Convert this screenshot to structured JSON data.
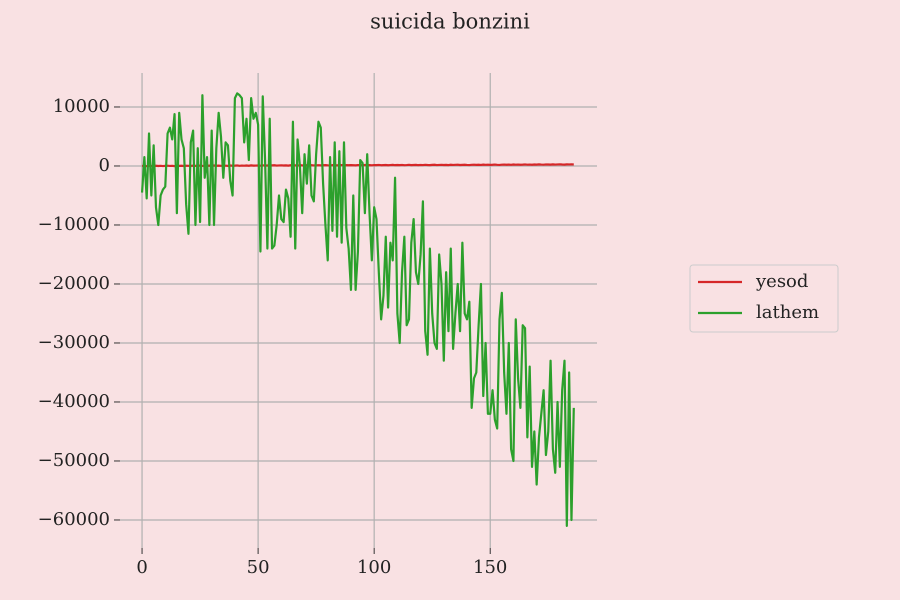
{
  "chart_data": {
    "type": "line",
    "title": "suicida bonzini",
    "x": [
      0,
      1,
      2,
      3,
      4,
      5,
      6,
      7,
      8,
      9,
      10,
      11,
      12,
      13,
      14,
      15,
      16,
      17,
      18,
      19,
      20,
      21,
      22,
      23,
      24,
      25,
      26,
      27,
      28,
      29,
      30,
      31,
      32,
      33,
      34,
      35,
      36,
      37,
      38,
      39,
      40,
      41,
      42,
      43,
      44,
      45,
      46,
      47,
      48,
      49,
      50,
      51,
      52,
      53,
      54,
      55,
      56,
      57,
      58,
      59,
      60,
      61,
      62,
      63,
      64,
      65,
      66,
      67,
      68,
      69,
      70,
      71,
      72,
      73,
      74,
      75,
      76,
      77,
      78,
      79,
      80,
      81,
      82,
      83,
      84,
      85,
      86,
      87,
      88,
      89,
      90,
      91,
      92,
      93,
      94,
      95,
      96,
      97,
      98,
      99,
      100,
      101,
      102,
      103,
      104,
      105,
      106,
      107,
      108,
      109,
      110,
      111,
      112,
      113,
      114,
      115,
      116,
      117,
      118,
      119,
      120,
      121,
      122,
      123,
      124,
      125,
      126,
      127,
      128,
      129,
      130,
      131,
      132,
      133,
      134,
      135,
      136,
      137,
      138,
      139,
      140,
      141,
      142,
      143,
      144,
      145,
      146,
      147,
      148,
      149,
      150,
      151,
      152,
      153,
      154,
      155,
      156,
      157,
      158,
      159,
      160,
      161,
      162,
      163,
      164,
      165,
      166,
      167,
      168,
      169,
      170,
      171,
      172,
      173,
      174,
      175,
      176,
      177,
      178,
      179,
      180,
      181,
      182,
      183,
      184,
      185,
      186
    ],
    "series": [
      {
        "name": "yesod",
        "color": "#d62728",
        "values": [
          0,
          20,
          -40,
          30,
          10,
          -20,
          40,
          0,
          30,
          -10,
          20,
          50,
          10,
          30,
          -20,
          60,
          20,
          40,
          0,
          50,
          30,
          10,
          60,
          20,
          40,
          70,
          10,
          50,
          30,
          60,
          20,
          80,
          40,
          60,
          30,
          70,
          50,
          20,
          80,
          40,
          60,
          90,
          30,
          70,
          50,
          80,
          40,
          100,
          60,
          70,
          90,
          50,
          110,
          70,
          80,
          60,
          100,
          120,
          70,
          90,
          110,
          80,
          100,
          60,
          120,
          90,
          110,
          70,
          130,
          100,
          80,
          120,
          100,
          140,
          90,
          110,
          130,
          100,
          120,
          150,
          110,
          90,
          140,
          120,
          100,
          130,
          160,
          110,
          140,
          120,
          150,
          130,
          100,
          160,
          140,
          120,
          170,
          130,
          150,
          110,
          160,
          140,
          180,
          130,
          150,
          170,
          120,
          160,
          190,
          140,
          170,
          150,
          180,
          130,
          160,
          200,
          150,
          170,
          190,
          140,
          180,
          160,
          200,
          170,
          150,
          190,
          210,
          160,
          180,
          200,
          170,
          190,
          150,
          210,
          180,
          200,
          220,
          170,
          190,
          210,
          180,
          160,
          200,
          220,
          190,
          210,
          180,
          230,
          200,
          220,
          190,
          210,
          240,
          200,
          180,
          220,
          240,
          210,
          230,
          200,
          250,
          220,
          240,
          210,
          230,
          260,
          220,
          240,
          210,
          250,
          230,
          270,
          240,
          220,
          260,
          250,
          230,
          270,
          240,
          260,
          280,
          250,
          230,
          270,
          260,
          280,
          250
        ]
      },
      {
        "name": "lathem",
        "color": "#2ca02c",
        "values": [
          -4500,
          1500,
          -5500,
          5500,
          -5000,
          3500,
          -7000,
          -10000,
          -5000,
          -4000,
          -3500,
          5500,
          6500,
          4500,
          8800,
          -8000,
          9000,
          4500,
          3000,
          -6500,
          -11500,
          4000,
          6000,
          -10000,
          3000,
          -9500,
          12000,
          -2000,
          1500,
          -10000,
          6000,
          -10000,
          3000,
          9000,
          5000,
          -2000,
          4000,
          3500,
          -2500,
          -5000,
          11500,
          12300,
          12000,
          11500,
          4000,
          8000,
          1000,
          11500,
          8000,
          9000,
          7000,
          -14500,
          11800,
          1000,
          -14000,
          8000,
          -14000,
          -13500,
          -10000,
          -5000,
          -9000,
          -9500,
          -4000,
          -5500,
          -12000,
          7500,
          -14000,
          4500,
          0,
          -8000,
          2000,
          -3000,
          3500,
          -5000,
          -6000,
          2000,
          7500,
          6500,
          -3000,
          -10000,
          -16000,
          1500,
          -11000,
          4000,
          -12000,
          2500,
          -13000,
          4000,
          -10500,
          -14000,
          -21000,
          -5000,
          -21000,
          -14500,
          1000,
          500,
          -8000,
          2000,
          -8000,
          -16000,
          -7000,
          -9000,
          -18000,
          -26000,
          -22000,
          -12000,
          -24000,
          -13000,
          -16000,
          -2000,
          -25000,
          -30000,
          -18000,
          -12000,
          -27000,
          -26000,
          -13000,
          -9000,
          -18000,
          -20000,
          -15000,
          -6000,
          -28000,
          -32000,
          -14000,
          -25000,
          -30000,
          -31000,
          -15000,
          -20000,
          -33000,
          -18000,
          -28000,
          -14000,
          -31000,
          -25000,
          -20000,
          -28000,
          -13000,
          -25000,
          -26000,
          -23000,
          -41000,
          -36000,
          -35000,
          -27000,
          -20000,
          -39000,
          -30000,
          -42000,
          -42000,
          -38000,
          -43000,
          -44500,
          -26000,
          -21500,
          -35000,
          -42000,
          -30000,
          -48000,
          -50000,
          -26000,
          -36000,
          -41000,
          -27000,
          -27500,
          -46000,
          -34000,
          -51000,
          -45000,
          -54000,
          -46000,
          -42000,
          -38000,
          -49000,
          -45000,
          -33000,
          -48000,
          -52000,
          -40000,
          -51000,
          -38000,
          -33000,
          -61000,
          -35000,
          -60000,
          -41000
        ]
      }
    ],
    "xlim": [
      -9.5,
      196
    ],
    "xticks": [
      0,
      50,
      100,
      150
    ],
    "ylim": [
      -64750,
      15760
    ],
    "yticks": [
      {
        "value": 10000,
        "label": "10000"
      },
      0,
      {
        "value": -10000,
        "label": "−10000"
      },
      {
        "value": -20000,
        "label": "−20000"
      },
      {
        "value": -30000,
        "label": "−30000"
      },
      {
        "value": -40000,
        "label": "−40000"
      },
      {
        "value": -50000,
        "label": "−50000"
      },
      {
        "value": -60000,
        "label": "−60000"
      }
    ],
    "grid": true,
    "legend": "right"
  }
}
